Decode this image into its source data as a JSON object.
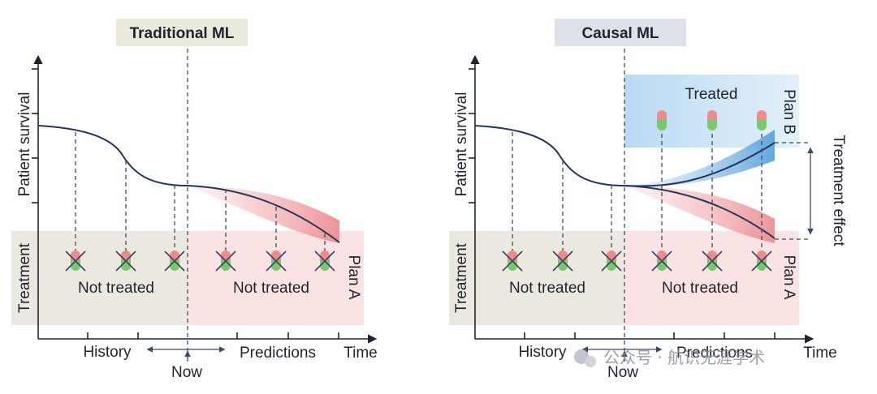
{
  "panels": {
    "left": {
      "title": "Traditional ML",
      "y_axis": "Patient survival",
      "treatment_axis": "Treatment",
      "history": "History",
      "predictions": "Predictions",
      "now": "Now",
      "time": "Time",
      "not_treated_history": "Not treated",
      "not_treated_future": "Not treated",
      "plan_a": "Plan A"
    },
    "right": {
      "title": "Causal ML",
      "y_axis": "Patient survival",
      "treatment_axis": "Treatment",
      "history": "History",
      "predictions": "Predictions",
      "now": "Now",
      "time": "Time",
      "not_treated_history": "Not treated",
      "not_treated_future": "Not treated",
      "treated": "Treated",
      "plan_a": "Plan A",
      "plan_b": "Plan B",
      "treatment_effect": "Treatment effect"
    }
  },
  "watermark": {
    "text": "公众号 · 航识无涯学术"
  },
  "colors": {
    "history_bg": "#ebe9df",
    "plan_a_bg": "#fce3e3",
    "plan_b_bg": "#cfe6f7",
    "red_band": "#f2a6a8",
    "blue_band": "#7db7e4",
    "curve": "#26365a",
    "title_left_bg": "#ebe9dc",
    "title_right_bg": "#dde1ea"
  }
}
